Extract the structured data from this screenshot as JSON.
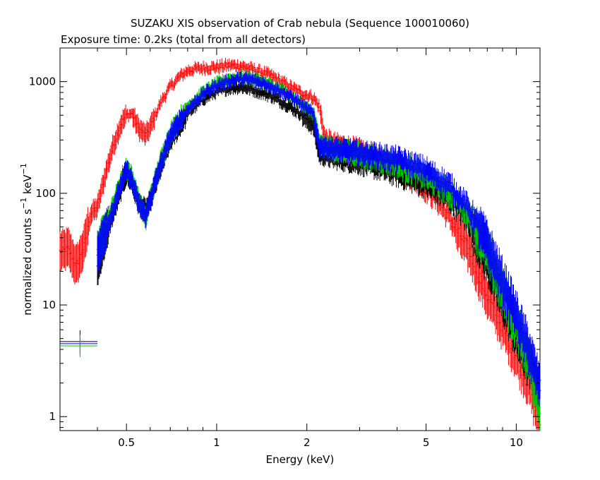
{
  "chart_data": {
    "type": "scatter",
    "title": "SUZAKU XIS observation of Crab nebula (Sequence 100010060)",
    "subtitle": "Exposure time: 0.2ks (total from all detectors)",
    "xlabel": "Energy (keV)",
    "ylabel_main": "normalized counts s",
    "ylabel_sup1": "−1",
    "ylabel_mid": " keV",
    "ylabel_sup2": "−1",
    "x_scale": "log",
    "y_scale": "log",
    "xlim": [
      0.3,
      12
    ],
    "ylim": [
      0.75,
      2000
    ],
    "x_ticks": [
      0.5,
      1,
      2,
      5,
      10
    ],
    "x_tick_labels": [
      "0.5",
      "1",
      "2",
      "5",
      "10"
    ],
    "y_ticks": [
      1,
      10,
      100,
      1000
    ],
    "y_tick_labels": [
      "1",
      "10",
      "100",
      "1000"
    ],
    "grid": false,
    "legend": "none",
    "series": [
      {
        "color": "#ff0000",
        "x": [
          0.3,
          0.32,
          0.34,
          0.36,
          0.38,
          0.4,
          0.42,
          0.45,
          0.48,
          0.5,
          0.52,
          0.55,
          0.58,
          0.6,
          0.65,
          0.7,
          0.75,
          0.8,
          0.85,
          0.9,
          1.0,
          1.1,
          1.2,
          1.3,
          1.5,
          1.7,
          1.9,
          2.1,
          2.2,
          2.3,
          2.5,
          3.0,
          3.5,
          4.0,
          4.5,
          5.0,
          5.5,
          6.0,
          7.0,
          8.0,
          9.0,
          10.0,
          11.0,
          12.0
        ],
        "y": [
          30,
          32,
          22,
          33,
          65,
          75,
          130,
          260,
          420,
          500,
          520,
          380,
          330,
          390,
          650,
          900,
          1100,
          1250,
          1300,
          1320,
          1350,
          1400,
          1380,
          1300,
          1150,
          950,
          800,
          720,
          600,
          300,
          270,
          240,
          200,
          170,
          140,
          110,
          85,
          60,
          30,
          12,
          6.5,
          3.5,
          2.0,
          0.9
        ]
      },
      {
        "color": "#000000",
        "x": [
          0.4,
          0.42,
          0.45,
          0.48,
          0.5,
          0.52,
          0.55,
          0.58,
          0.6,
          0.65,
          0.7,
          0.8,
          0.9,
          1.0,
          1.1,
          1.2,
          1.3,
          1.5,
          1.7,
          1.9,
          2.1,
          2.2,
          2.5,
          3.0,
          3.5,
          4.0,
          5.0,
          6.0,
          7.0,
          8.0,
          9.0,
          10.0,
          11.0,
          12.0
        ],
        "y": [
          22,
          38,
          65,
          110,
          150,
          130,
          80,
          70,
          85,
          170,
          300,
          520,
          700,
          820,
          880,
          900,
          860,
          760,
          630,
          520,
          420,
          230,
          210,
          190,
          170,
          150,
          120,
          90,
          55,
          25,
          11,
          5.5,
          3.0,
          1.7
        ]
      },
      {
        "color": "#00cc00",
        "x": [
          0.4,
          0.42,
          0.45,
          0.48,
          0.5,
          0.52,
          0.55,
          0.58,
          0.6,
          0.65,
          0.7,
          0.8,
          0.9,
          1.0,
          1.1,
          1.2,
          1.3,
          1.5,
          1.7,
          1.9,
          2.1,
          2.2,
          2.5,
          3.0,
          3.5,
          4.0,
          5.0,
          6.0,
          7.0,
          8.0,
          9.0,
          10.0,
          11.0,
          12.0
        ],
        "y": [
          30,
          45,
          75,
          130,
          170,
          140,
          85,
          58,
          90,
          190,
          340,
          600,
          800,
          960,
          1050,
          1100,
          1080,
          950,
          800,
          650,
          520,
          270,
          245,
          220,
          200,
          180,
          140,
          100,
          62,
          30,
          13,
          6.5,
          3.2,
          1.2
        ]
      },
      {
        "color": "#0000ff",
        "x": [
          0.4,
          0.42,
          0.45,
          0.48,
          0.5,
          0.52,
          0.55,
          0.58,
          0.6,
          0.65,
          0.7,
          0.8,
          0.9,
          1.0,
          1.1,
          1.2,
          1.3,
          1.5,
          1.7,
          1.9,
          2.1,
          2.2,
          2.5,
          3.0,
          3.5,
          4.0,
          5.0,
          6.0,
          7.0,
          8.0,
          9.0,
          10.0,
          11.0,
          12.0
        ],
        "y": [
          28,
          42,
          70,
          120,
          160,
          130,
          80,
          62,
          88,
          180,
          320,
          570,
          770,
          930,
          1020,
          1060,
          1040,
          930,
          780,
          640,
          510,
          265,
          250,
          230,
          215,
          200,
          160,
          115,
          70,
          35,
          16,
          8,
          4.0,
          1.8
        ]
      }
    ],
    "side_markers": [
      {
        "color": "#000000",
        "x_range": [
          0.3,
          0.4
        ],
        "y": 4.7
      },
      {
        "color": "#0000ff",
        "x_range": [
          0.3,
          0.4
        ],
        "y": 4.5
      },
      {
        "color": "#00cc00",
        "x_range": [
          0.3,
          0.4
        ],
        "y": 4.3
      }
    ]
  }
}
